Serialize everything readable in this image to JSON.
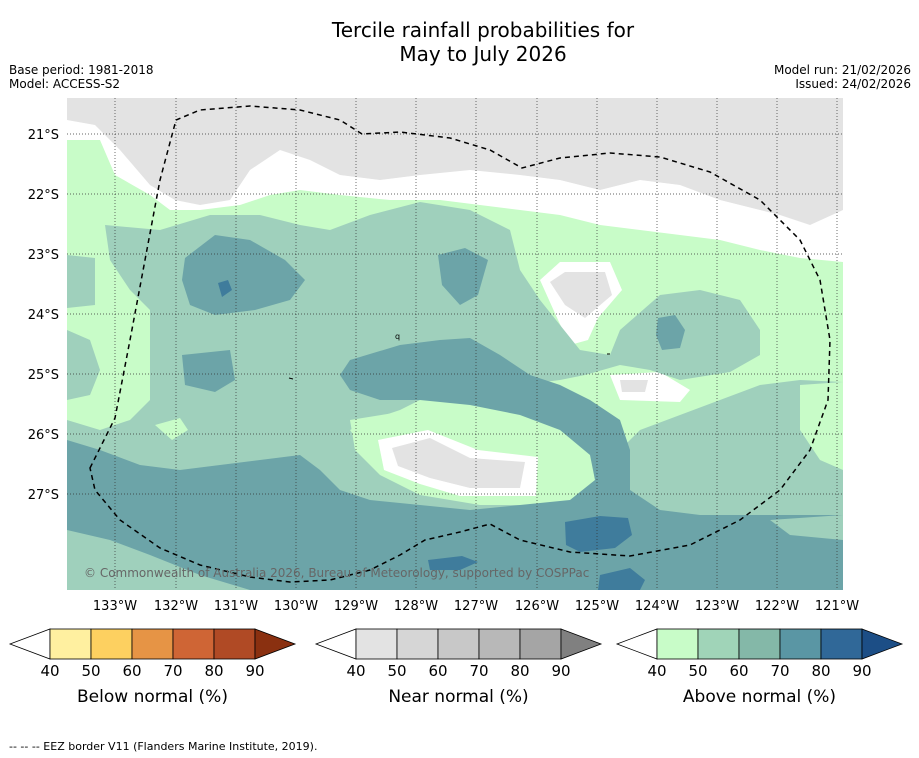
{
  "title_line1": "Tercile rainfall probabilities for",
  "title_line2": "May to July 2026",
  "base_period": "Base period: 1981-2018",
  "model": "Model: ACCESS-S2",
  "model_run": "Model run: 21/02/2026",
  "issued": "Issued: 24/02/2026",
  "copyright": "© Commonwealth of Australia 2026, Bureau of Meteorology, supported by COSPPac",
  "footer": "-- -- -- EEZ border V11 (Flanders Marine Institute, 2019).",
  "lat_labels": [
    "21°S",
    "22°S",
    "23°S",
    "24°S",
    "25°S",
    "26°S",
    "27°S"
  ],
  "lon_labels": [
    "133°W",
    "132°W",
    "131°W",
    "130°W",
    "129°W",
    "128°W",
    "127°W",
    "126°W",
    "125°W",
    "124°W",
    "123°W",
    "122°W",
    "121°W"
  ],
  "colorbars": [
    {
      "title": "Below normal (%)",
      "ticks": [
        "40",
        "50",
        "60",
        "70",
        "80",
        "90"
      ],
      "colors": [
        "#ffffff",
        "#fff0a0",
        "#fdd060",
        "#e69445",
        "#cf6535",
        "#b04a25",
        "#8a3010"
      ]
    },
    {
      "title": "Near normal (%)",
      "ticks": [
        "40",
        "50",
        "60",
        "70",
        "80",
        "90"
      ],
      "colors": [
        "#ffffff",
        "#e3e3e3",
        "#d6d6d6",
        "#c8c8c8",
        "#b8b8b8",
        "#a5a5a5",
        "#808080"
      ]
    },
    {
      "title": "Above normal (%)",
      "ticks": [
        "40",
        "50",
        "60",
        "70",
        "80",
        "90"
      ],
      "colors": [
        "#ffffff",
        "#c8fcc8",
        "#a0d4b8",
        "#84b8a8",
        "#5a96a4",
        "#306898",
        "#1c4e86"
      ]
    }
  ],
  "colors": {
    "above_40": "#c8fcc8",
    "above_50": "#9fd0bc",
    "above_60": "#6ca4a8",
    "above_70": "#3f7c9c",
    "near_40": "#e3e3e3"
  }
}
